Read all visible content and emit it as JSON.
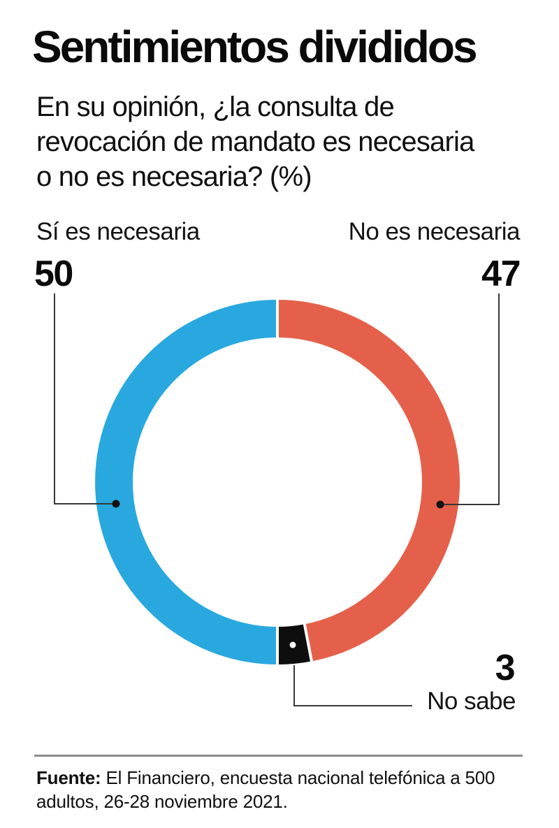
{
  "title": "Sentimientos divididos",
  "subtitle_lines": [
    "En su opinión, ¿la consulta de",
    "revocación de mandato es necesaria",
    "o no es necesaria? (%)"
  ],
  "chart_data": {
    "type": "pie",
    "variant": "donut",
    "unit": "%",
    "title": "Sentimientos divididos",
    "question": "En su opinión, ¿la consulta de revocación de mandato es necesaria o no es necesaria? (%)",
    "segments": [
      {
        "id": "si",
        "label": "Sí es necesaria",
        "value": 50,
        "color": "#29A8DF"
      },
      {
        "id": "no",
        "label": "No es necesaria",
        "value": 47,
        "color": "#E5604A"
      },
      {
        "id": "nosabe",
        "label": "No sabe",
        "value": 3,
        "color": "#0E0E0E"
      }
    ],
    "clockwise_order_from_top": [
      "no",
      "nosabe",
      "si"
    ],
    "legend_position": "callout-labels",
    "grid": false
  },
  "footer": {
    "source_prefix": "Fuente:",
    "line1_rest": " El Financiero, encuesta nacional telefónica a 500",
    "line2": "adultos, 26-28 noviembre 2021."
  },
  "colors": {
    "si_blue": "#29A8DF",
    "no_red": "#E5604A",
    "nosabe_black": "#0E0E0E",
    "leader_line": "#383838",
    "footer_rule": "#8D8D8D",
    "background": "#FFFFFF",
    "text": "#0A0A0A"
  }
}
